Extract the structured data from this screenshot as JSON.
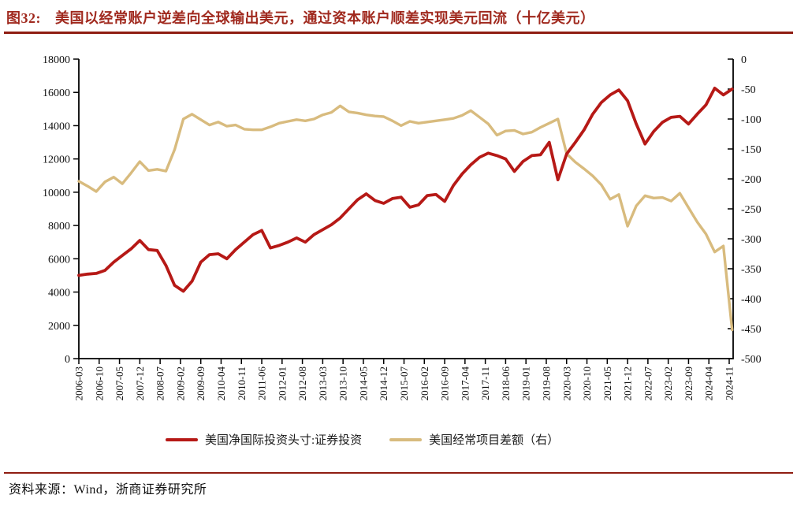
{
  "title": {
    "figure_label": "图32:",
    "text": "美国以经常账户逆差向全球输出美元，通过资本账户顺差实现美元回流（十亿美元）"
  },
  "source": {
    "text": "资料来源：Wind，浙商证券研究所"
  },
  "legend": [
    {
      "label": "美国净国际投资头寸:证券投资",
      "color": "#b61916"
    },
    {
      "label": "美国经常项目差额（右）",
      "color": "#d8bb7e"
    }
  ],
  "colors": {
    "title_red": "#a0291e",
    "rule_red": "#8f1d12",
    "line_red": "#b61916",
    "line_tan": "#d8bb7e",
    "axis_black": "#000000"
  },
  "chart_data": {
    "type": "line",
    "title": "图32: 美国以经常账户逆差向全球输出美元，通过资本账户顺差实现美元回流（十亿美元）",
    "grid": false,
    "legend_position": "bottom",
    "x_tick_labels": [
      "2006-03",
      "2006-10",
      "2007-05",
      "2007-12",
      "2008-07",
      "2009-02",
      "2009-09",
      "2010-04",
      "2010-11",
      "2011-06",
      "2012-01",
      "2012-08",
      "2013-03",
      "2013-10",
      "2014-05",
      "2014-12",
      "2015-07",
      "2016-02",
      "2016-09",
      "2017-04",
      "2017-11",
      "2018-06",
      "2019-01",
      "2019-08",
      "2020-03",
      "2020-10",
      "2021-05",
      "2021-12",
      "2022-07",
      "2023-02",
      "2023-09",
      "2024-04",
      "2024-11"
    ],
    "left_axis": {
      "range": [
        0,
        18000
      ],
      "tick_step": 2000,
      "ticks": [
        0,
        2000,
        4000,
        6000,
        8000,
        10000,
        12000,
        14000,
        16000,
        18000
      ]
    },
    "right_axis": {
      "range": [
        -500,
        0
      ],
      "tick_step": 50,
      "ticks": [
        0,
        -50,
        -100,
        -150,
        -200,
        -250,
        -300,
        -350,
        -400,
        -450,
        -500
      ]
    },
    "series": [
      {
        "name": "美国净国际投资头寸:证券投资",
        "axis": "left",
        "color": "#b61916",
        "sampling": "quarterly 2006Q1-2024Q4",
        "values": [
          5000,
          5080,
          5120,
          5300,
          5800,
          6200,
          6600,
          7100,
          6550,
          6500,
          5600,
          4400,
          4050,
          4650,
          5800,
          6250,
          6300,
          6000,
          6550,
          7000,
          7450,
          7700,
          6650,
          6800,
          7000,
          7250,
          7000,
          7450,
          7750,
          8050,
          8450,
          9000,
          9550,
          9900,
          9500,
          9330,
          9620,
          9700,
          9100,
          9240,
          9800,
          9860,
          9450,
          10400,
          11100,
          11650,
          12100,
          12350,
          12200,
          12000,
          11250,
          11850,
          12200,
          12250,
          13000,
          10750,
          12300,
          13000,
          13740,
          14700,
          15400,
          15850,
          16150,
          15500,
          14100,
          12900,
          13650,
          14200,
          14500,
          14560,
          14100,
          14700,
          15250,
          16250,
          15850,
          16200
        ]
      },
      {
        "name": "美国经常项目差额（右）",
        "axis": "right",
        "color": "#d8bb7e",
        "sampling": "quarterly 2006Q1-2024Q4",
        "values": [
          -204,
          -212,
          -221,
          -205,
          -197,
          -208,
          -190,
          -171,
          -186,
          -184,
          -187,
          -151,
          -100,
          -92,
          -101,
          -110,
          -105,
          -112,
          -110,
          -117,
          -118,
          -118,
          -113,
          -107,
          -104,
          -101,
          -103,
          -100,
          -93,
          -89,
          -78,
          -88,
          -90,
          -93,
          -95,
          -96,
          -103,
          -111,
          -104,
          -107,
          -105,
          -103,
          -101,
          -99,
          -94,
          -86,
          -97,
          -108,
          -127,
          -120,
          -119,
          -125,
          -122,
          -114,
          -107,
          -100,
          -158,
          -172,
          -183,
          -195,
          -210,
          -234,
          -226,
          -279,
          -245,
          -228,
          -232,
          -231,
          -237,
          -224,
          -248,
          -272,
          -292,
          -322,
          -312,
          -452
        ]
      }
    ]
  }
}
